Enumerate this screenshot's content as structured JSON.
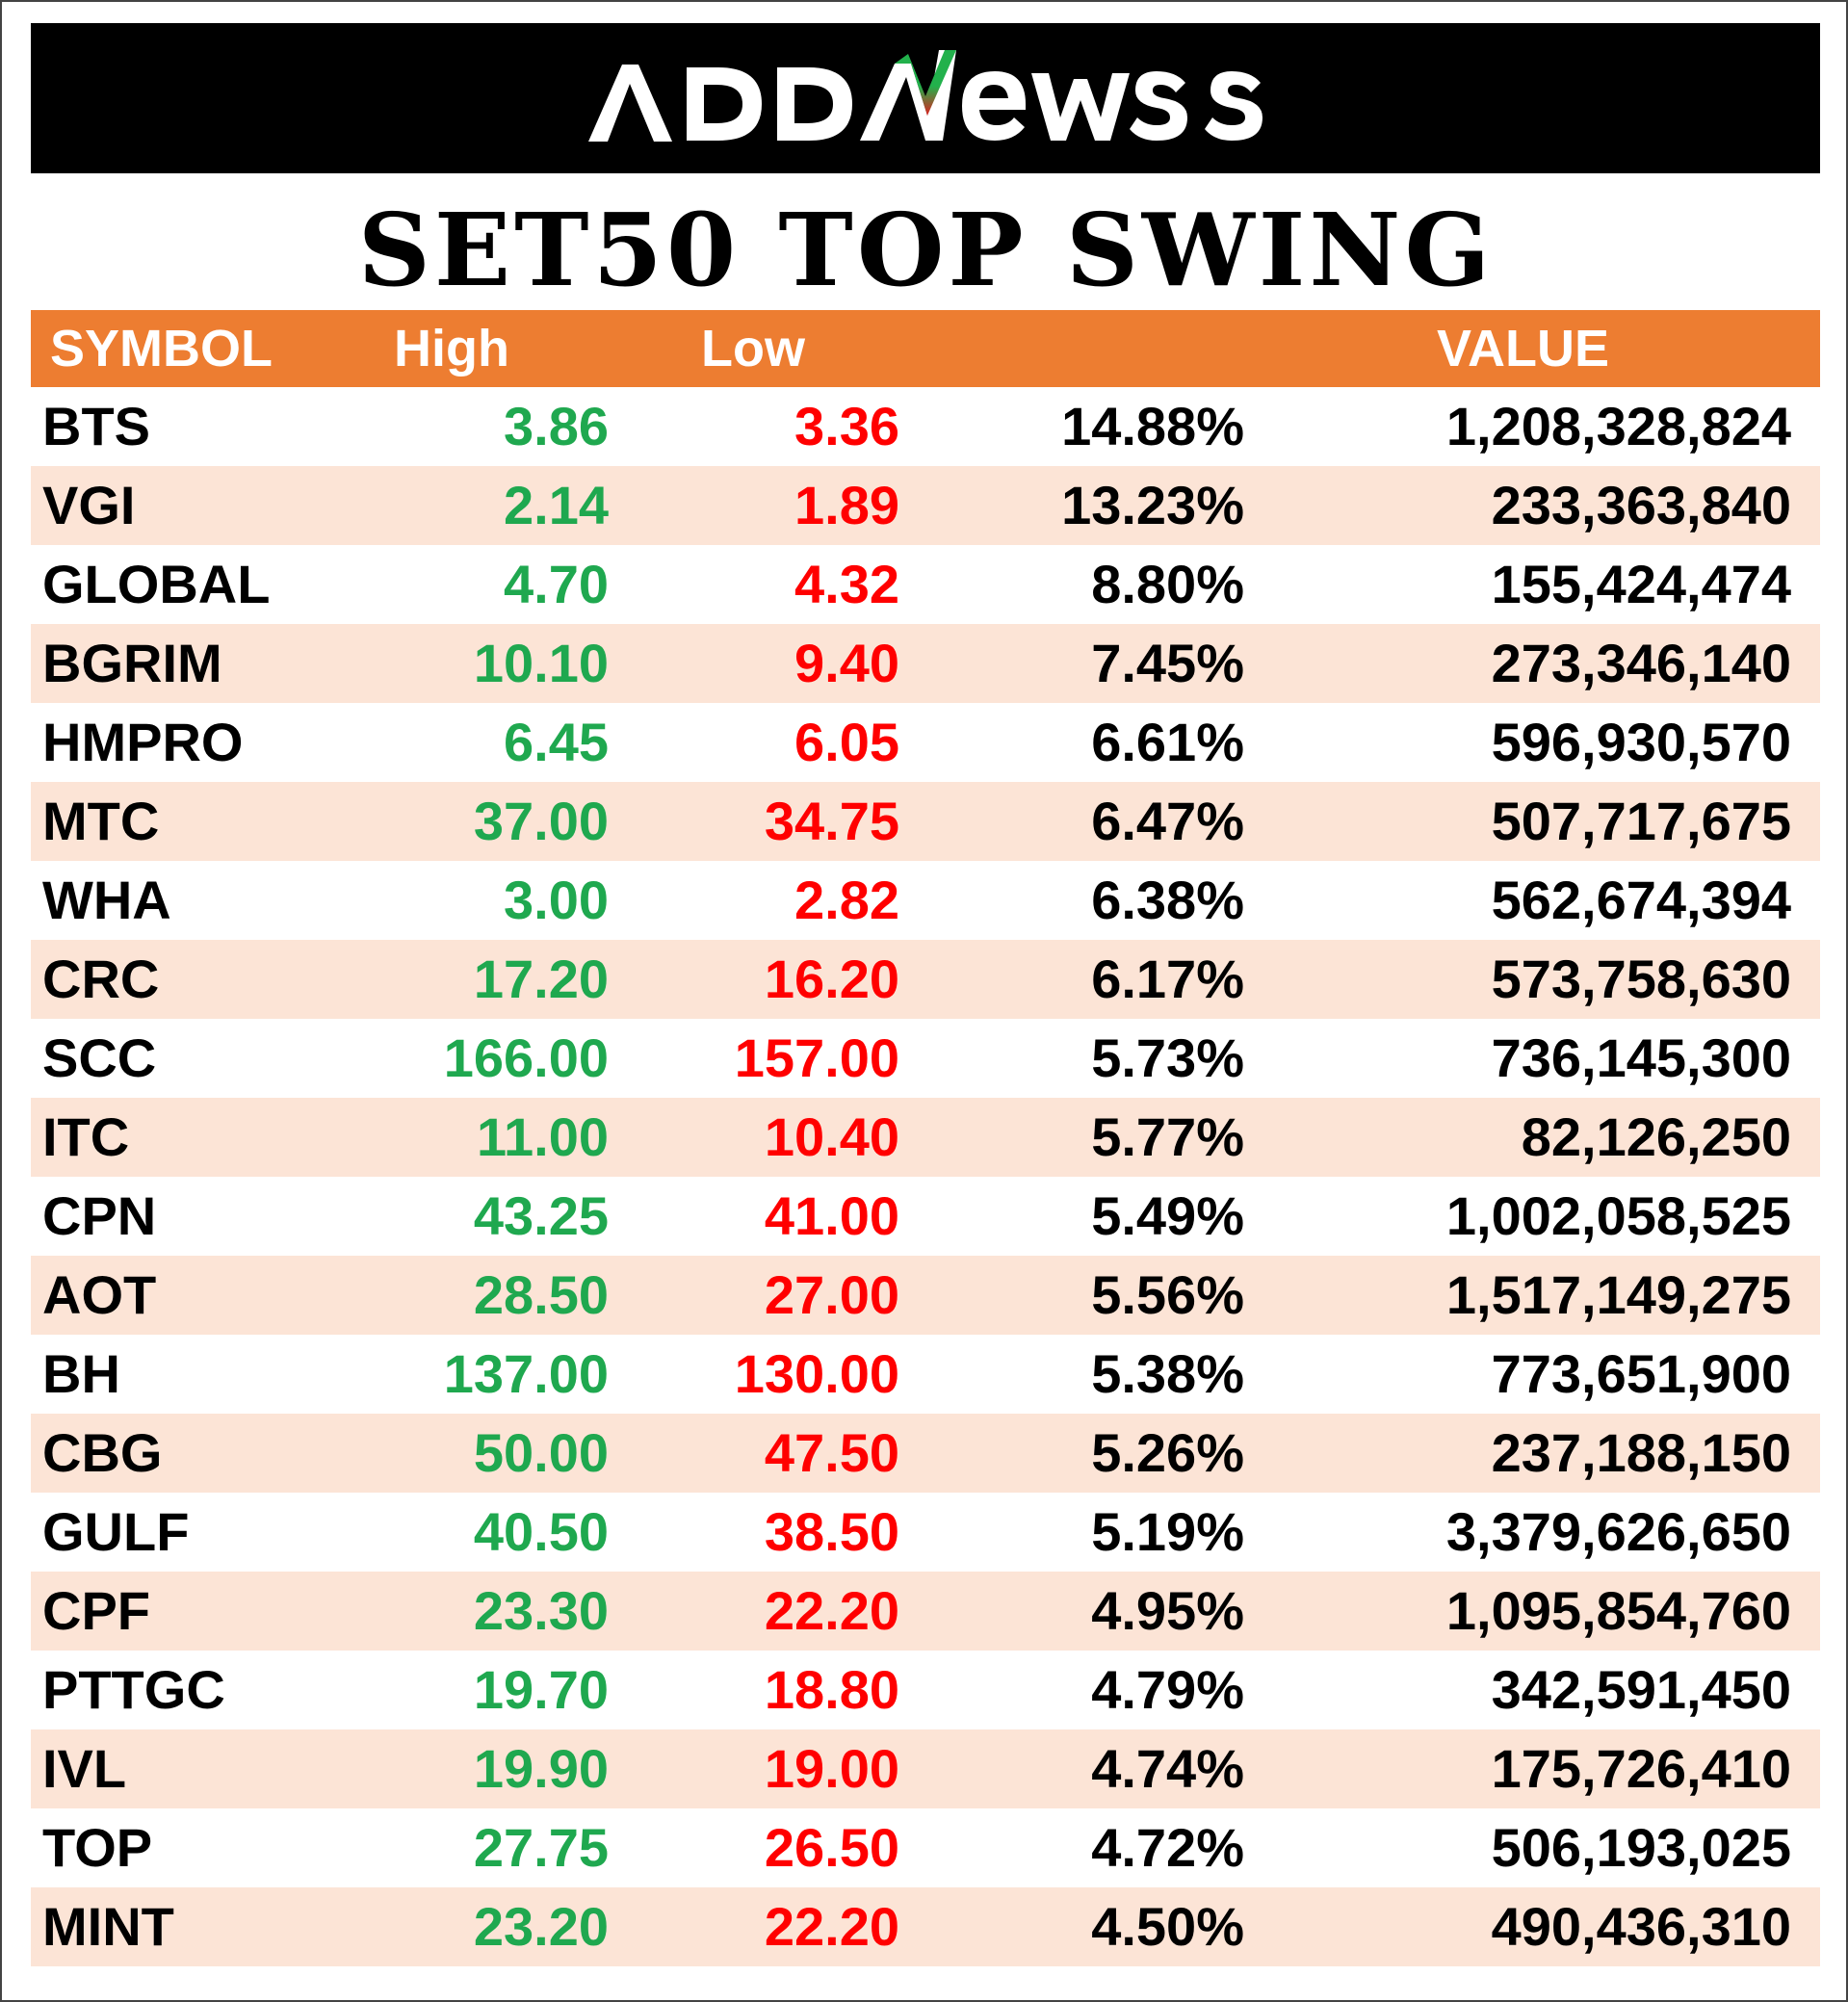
{
  "brand": {
    "logo_text": "ADDNewss",
    "colors": {
      "bar": "#000000",
      "text": "#ffffff",
      "accent_green": "#22B14C",
      "accent_red": "#E0201F"
    }
  },
  "title": "SET50 TOP SWING",
  "colors": {
    "header_bg": "#ED7D31",
    "stripe": "#FCE4D6",
    "high": "#1FA84F",
    "low": "#FF0000"
  },
  "headers": {
    "symbol": "SYMBOL",
    "high": "High",
    "low": "Low",
    "pct": "",
    "value": "VALUE"
  },
  "rows": [
    {
      "symbol": "BTS",
      "high": "3.86",
      "low": "3.36",
      "pct": "14.88%",
      "value": "1,208,328,824"
    },
    {
      "symbol": "VGI",
      "high": "2.14",
      "low": "1.89",
      "pct": "13.23%",
      "value": "233,363,840"
    },
    {
      "symbol": "GLOBAL",
      "high": "4.70",
      "low": "4.32",
      "pct": "8.80%",
      "value": "155,424,474"
    },
    {
      "symbol": "BGRIM",
      "high": "10.10",
      "low": "9.40",
      "pct": "7.45%",
      "value": "273,346,140"
    },
    {
      "symbol": "HMPRO",
      "high": "6.45",
      "low": "6.05",
      "pct": "6.61%",
      "value": "596,930,570"
    },
    {
      "symbol": "MTC",
      "high": "37.00",
      "low": "34.75",
      "pct": "6.47%",
      "value": "507,717,675"
    },
    {
      "symbol": "WHA",
      "high": "3.00",
      "low": "2.82",
      "pct": "6.38%",
      "value": "562,674,394"
    },
    {
      "symbol": "CRC",
      "high": "17.20",
      "low": "16.20",
      "pct": "6.17%",
      "value": "573,758,630"
    },
    {
      "symbol": "SCC",
      "high": "166.00",
      "low": "157.00",
      "pct": "5.73%",
      "value": "736,145,300"
    },
    {
      "symbol": "ITC",
      "high": "11.00",
      "low": "10.40",
      "pct": "5.77%",
      "value": "82,126,250"
    },
    {
      "symbol": "CPN",
      "high": "43.25",
      "low": "41.00",
      "pct": "5.49%",
      "value": "1,002,058,525"
    },
    {
      "symbol": "AOT",
      "high": "28.50",
      "low": "27.00",
      "pct": "5.56%",
      "value": "1,517,149,275"
    },
    {
      "symbol": "BH",
      "high": "137.00",
      "low": "130.00",
      "pct": "5.38%",
      "value": "773,651,900"
    },
    {
      "symbol": "CBG",
      "high": "50.00",
      "low": "47.50",
      "pct": "5.26%",
      "value": "237,188,150"
    },
    {
      "symbol": "GULF",
      "high": "40.50",
      "low": "38.50",
      "pct": "5.19%",
      "value": "3,379,626,650"
    },
    {
      "symbol": "CPF",
      "high": "23.30",
      "low": "22.20",
      "pct": "4.95%",
      "value": "1,095,854,760"
    },
    {
      "symbol": "PTTGC",
      "high": "19.70",
      "low": "18.80",
      "pct": "4.79%",
      "value": "342,591,450"
    },
    {
      "symbol": "IVL",
      "high": "19.90",
      "low": "19.00",
      "pct": "4.74%",
      "value": "175,726,410"
    },
    {
      "symbol": "TOP",
      "high": "27.75",
      "low": "26.50",
      "pct": "4.72%",
      "value": "506,193,025"
    },
    {
      "symbol": "MINT",
      "high": "23.20",
      "low": "22.20",
      "pct": "4.50%",
      "value": "490,436,310"
    }
  ]
}
